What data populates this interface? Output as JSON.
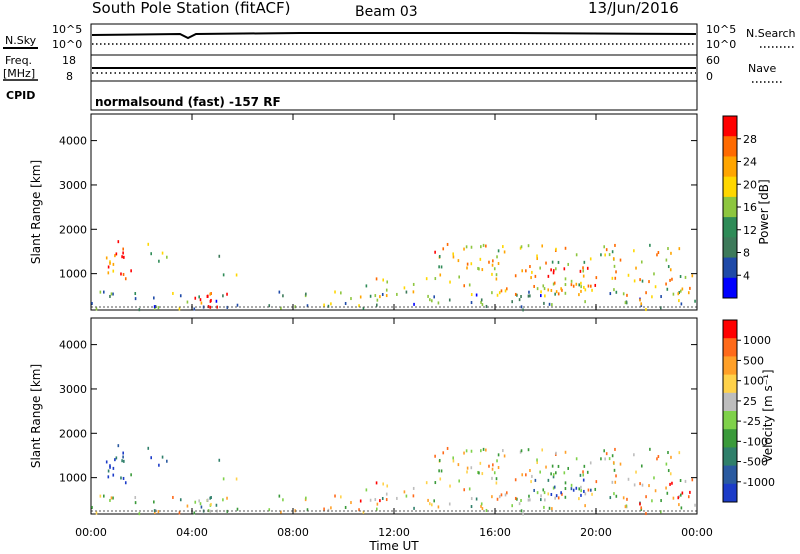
{
  "header": {
    "title": "South Pole Station (fitACF)",
    "beam": "Beam 03",
    "date": "13/Jun/2016",
    "cpid_label": "CPID",
    "cpid_value": "normalsound (fast) -157 RF"
  },
  "nsky_panel": {
    "left_label": "N.Sky",
    "left_ticks": [
      "10^5",
      "10^0"
    ],
    "right_label": "N.Search",
    "right_ticks": [
      "10^5",
      "10^0"
    ]
  },
  "freq_panel": {
    "left_label_1": "Freq.",
    "left_label_2": "[MHz]",
    "left_ticks": [
      "18",
      "8"
    ],
    "right_label": "Nave",
    "right_ticks": [
      "60",
      "0"
    ]
  },
  "colors": {
    "power": [
      "#0000ff",
      "#1f4aa8",
      "#3d7a5a",
      "#2e8b57",
      "#8dc63f",
      "#ffd700",
      "#ffa500",
      "#ff6a00",
      "#ff0000"
    ],
    "velocity": [
      "#1c3cc8",
      "#2a5aa0",
      "#2f7f6a",
      "#3a9a3a",
      "#7fd14a",
      "#bdbdbd",
      "#ffd24a",
      "#ffa028",
      "#ff6a1a",
      "#ff0000"
    ]
  },
  "chart_data": [
    {
      "type": "heatmap",
      "name": "power",
      "ylabel": "Slant Range [km]",
      "yticks": [
        1000,
        2000,
        3000,
        4000
      ],
      "ylim": [
        180,
        4600
      ],
      "x_ticks": [
        "00:00",
        "04:00",
        "08:00",
        "12:00",
        "16:00",
        "20:00",
        "00:00"
      ],
      "x_hours": [
        0,
        4,
        8,
        12,
        16,
        20,
        24
      ],
      "colorbar": {
        "label": "Power [dB]",
        "ticks": [
          "28",
          "24",
          "20",
          "16",
          "12",
          "8",
          "4"
        ]
      }
    },
    {
      "type": "heatmap",
      "name": "velocity",
      "ylabel": "Slant Range [km]",
      "yticks": [
        1000,
        2000,
        3000,
        4000
      ],
      "ylim": [
        180,
        4600
      ],
      "xlabel": "Time UT",
      "x_ticks": [
        "00:00",
        "04:00",
        "08:00",
        "12:00",
        "16:00",
        "20:00",
        "00:00"
      ],
      "x_hours": [
        0,
        4,
        8,
        12,
        16,
        20,
        24
      ],
      "colorbar": {
        "label": "Velocity [m s⁻¹]",
        "ticks": [
          "1000",
          "500",
          "100",
          "25",
          "-25",
          "-100",
          "-500",
          "-1000"
        ]
      }
    }
  ]
}
